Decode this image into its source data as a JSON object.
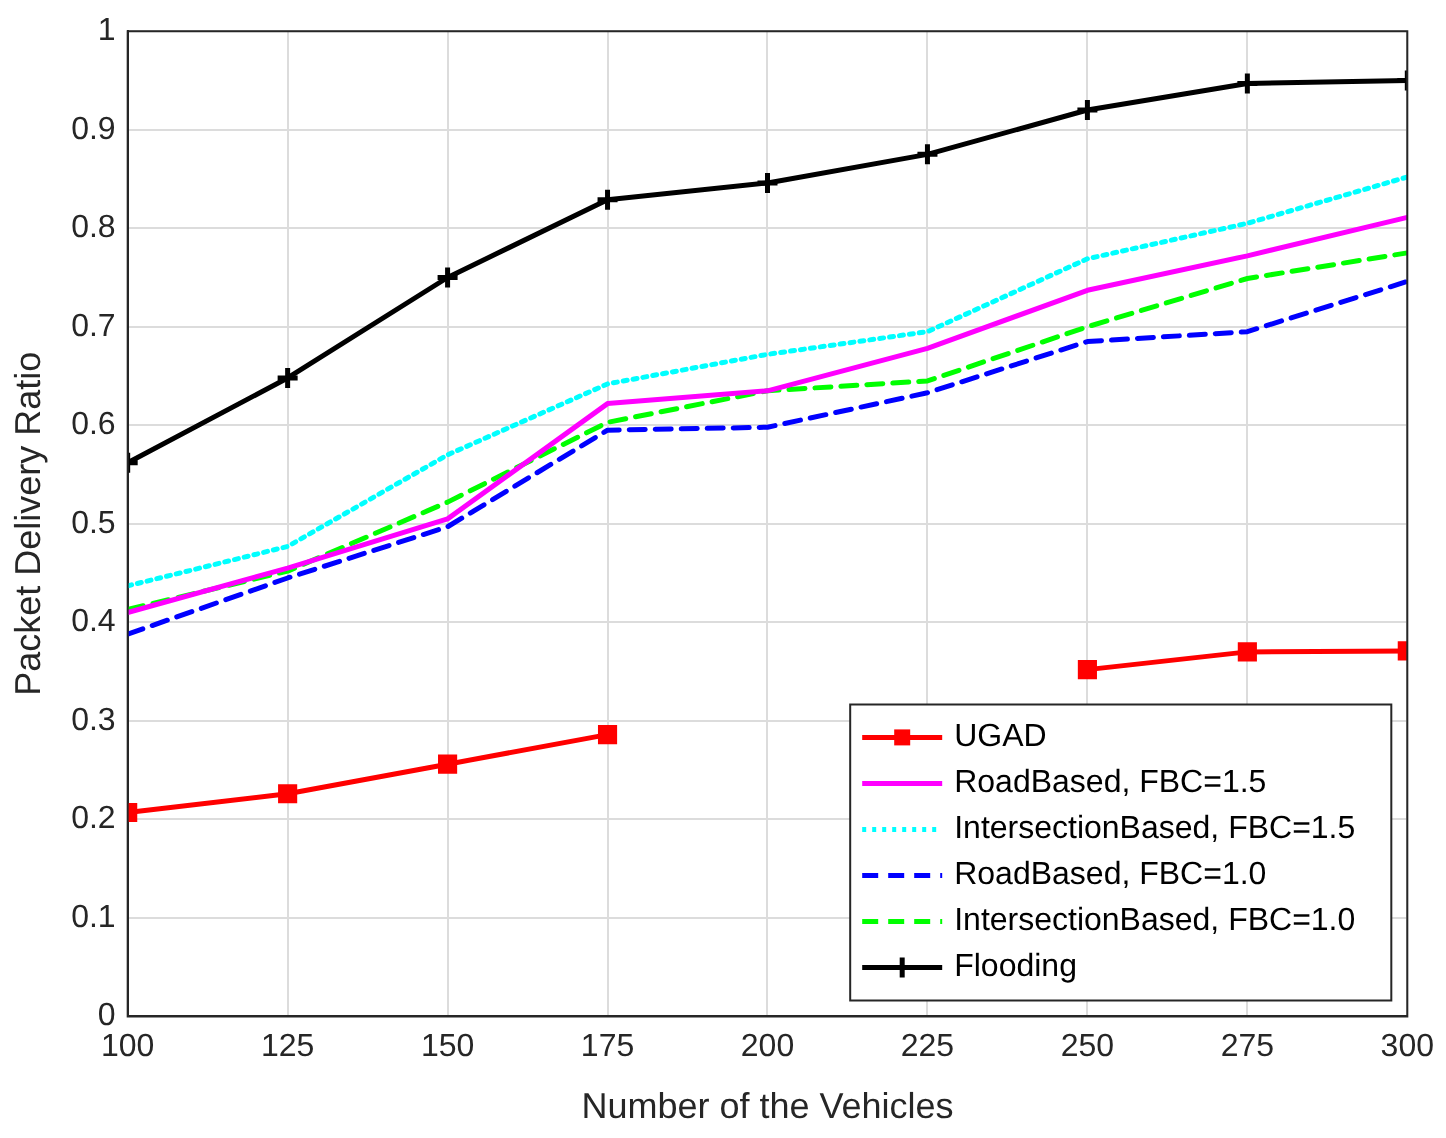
{
  "chart_data": {
    "type": "line",
    "xlabel": "Number of the Vehicles",
    "ylabel": "Packet Delivery Ratio",
    "x": [
      100,
      125,
      150,
      175,
      200,
      225,
      250,
      275,
      300
    ],
    "series": [
      {
        "name": "UGAD",
        "color": "#ff0000",
        "marker": "square",
        "line_style": "solid",
        "values": [
          0.207,
          0.226,
          0.256,
          0.286,
          null,
          null,
          0.352,
          0.37,
          0.371
        ]
      },
      {
        "name": "RoadBased, FBC=1.5",
        "color": "#ff00ff",
        "marker": "none",
        "line_style": "solid",
        "values": [
          0.41,
          0.455,
          0.505,
          0.622,
          0.635,
          0.678,
          0.737,
          0.772,
          0.811
        ]
      },
      {
        "name": "IntersectionBased, FBC=1.5",
        "color": "#00ffff",
        "marker": "none",
        "line_style": "dotted",
        "values": [
          0.437,
          0.477,
          0.57,
          0.642,
          0.672,
          0.695,
          0.769,
          0.805,
          0.852
        ]
      },
      {
        "name": "RoadBased, FBC=1.0",
        "color": "#0000ff",
        "marker": "none",
        "line_style": "dashed",
        "values": [
          0.388,
          0.445,
          0.497,
          0.595,
          0.598,
          0.633,
          0.685,
          0.695,
          0.746
        ]
      },
      {
        "name": "IntersectionBased, FBC=1.0",
        "color": "#00ff00",
        "marker": "none",
        "line_style": "dashed",
        "values": [
          0.413,
          0.452,
          0.522,
          0.603,
          0.635,
          0.645,
          0.7,
          0.749,
          0.775
        ]
      },
      {
        "name": "Flooding",
        "color": "#000000",
        "marker": "cross",
        "line_style": "solid",
        "values": [
          0.562,
          0.648,
          0.75,
          0.829,
          0.846,
          0.875,
          0.92,
          0.947,
          0.95
        ]
      }
    ],
    "xlim": [
      100,
      300
    ],
    "xticks": [
      100,
      125,
      150,
      175,
      200,
      225,
      250,
      275,
      300
    ],
    "ylim": [
      0,
      1
    ],
    "yticks": [
      0,
      0.1,
      0.2,
      0.3,
      0.4,
      0.5,
      0.6,
      0.7,
      0.8,
      0.9,
      1
    ],
    "grid": true,
    "legend": "bottom right"
  }
}
